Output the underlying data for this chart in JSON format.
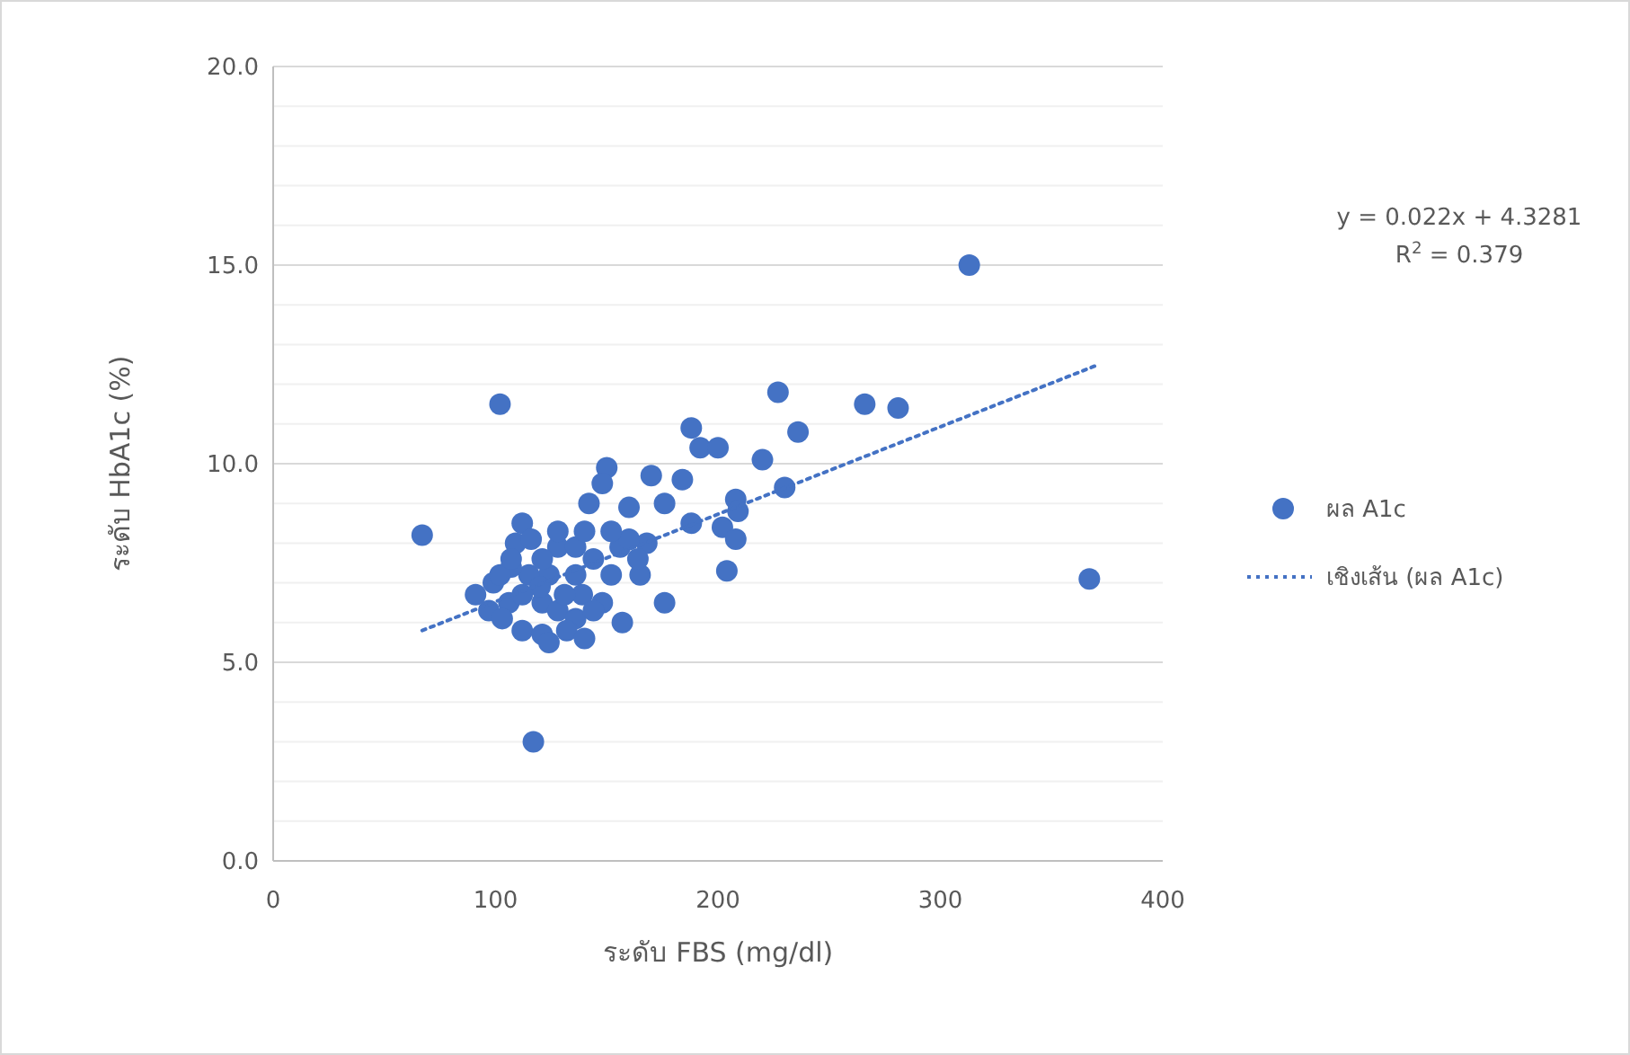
{
  "chart_data": {
    "type": "scatter",
    "xlabel": "ระดับ FBS (mg/dl)",
    "ylabel": "ระดับ HbA1c (%)",
    "xlim": [
      0,
      400
    ],
    "xticks": [
      0,
      100,
      200,
      300,
      400
    ],
    "ylim": [
      0,
      20
    ],
    "yticks": [
      {
        "value": 0,
        "label": "0.0"
      },
      {
        "value": 1,
        "label": null
      },
      {
        "value": 2,
        "label": null
      },
      {
        "value": 3,
        "label": null
      },
      {
        "value": 4,
        "label": null
      },
      {
        "value": 5,
        "label": "5.0"
      },
      {
        "value": 6,
        "label": null
      },
      {
        "value": 7,
        "label": null
      },
      {
        "value": 8,
        "label": null
      },
      {
        "value": 9,
        "label": null
      },
      {
        "value": 10,
        "label": "10.0"
      },
      {
        "value": 11,
        "label": null
      },
      {
        "value": 12,
        "label": null
      },
      {
        "value": 13,
        "label": null
      },
      {
        "value": 14,
        "label": null
      },
      {
        "value": 15,
        "label": "15.0"
      },
      {
        "value": 16,
        "label": null
      },
      {
        "value": 17,
        "label": null
      },
      {
        "value": 18,
        "label": null
      },
      {
        "value": 19,
        "label": null
      },
      {
        "value": 20,
        "label": "20.0"
      }
    ],
    "grid": "y",
    "legend": "right",
    "marker": "circle",
    "annotations": [
      "y = 0.022x + 4.3281",
      "R$^{2}$ = 0.379"
    ],
    "series": [
      {
        "name": "ผล A1c",
        "color": "#4472c4",
        "x": [
          67,
          102,
          117,
          313,
          367,
          227,
          266,
          281,
          236,
          220,
          188,
          192,
          200,
          208,
          230,
          202,
          204,
          209,
          208,
          184,
          188,
          176,
          168,
          176,
          170,
          150,
          148,
          142,
          160,
          165,
          136,
          157,
          139,
          148,
          112,
          109,
          106,
          99,
          97,
          103,
          112,
          121,
          121,
          128,
          136,
          144,
          131,
          124,
          115,
          107,
          128,
          121,
          136,
          144,
          152,
          156,
          140,
          128,
          116,
          120,
          112,
          102,
          107,
          132,
          140,
          124,
          160,
          164,
          152,
          91
        ],
        "values": [
          8.2,
          11.5,
          3.0,
          15.0,
          7.1,
          11.8,
          11.5,
          11.4,
          10.8,
          10.1,
          10.9,
          10.4,
          10.4,
          9.1,
          9.4,
          8.4,
          7.3,
          8.8,
          8.1,
          9.6,
          8.5,
          9.0,
          8.0,
          6.5,
          9.7,
          9.9,
          9.5,
          9.0,
          8.9,
          7.2,
          7.2,
          6.0,
          6.7,
          6.5,
          8.5,
          8.0,
          6.5,
          7.0,
          6.3,
          6.1,
          5.8,
          5.7,
          6.5,
          6.3,
          6.1,
          6.3,
          6.7,
          7.2,
          7.2,
          7.4,
          7.9,
          7.6,
          7.9,
          7.6,
          7.2,
          7.9,
          8.3,
          8.3,
          8.1,
          6.9,
          6.7,
          7.2,
          7.6,
          5.8,
          5.6,
          5.5,
          8.1,
          7.6,
          8.3,
          6.7
        ]
      },
      {
        "name": "เชิงเส้น (ผล A1c)",
        "type": "line",
        "color": "#4472c4",
        "line_style": "dotted",
        "marker": "none",
        "x": [
          67,
          370
        ],
        "values": [
          5.8,
          12.47
        ]
      }
    ]
  }
}
